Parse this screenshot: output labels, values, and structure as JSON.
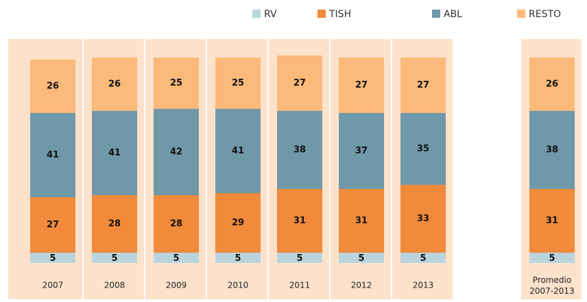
{
  "chart_data": {
    "type": "stacked-bar",
    "categories": [
      "2007",
      "2008",
      "2009",
      "2010",
      "2011",
      "2012",
      "2013",
      "Promedio 2007-2013"
    ],
    "series": [
      {
        "name": "RV",
        "color": "#b9d4dd",
        "values": [
          5,
          5,
          5,
          5,
          5,
          5,
          5,
          5
        ]
      },
      {
        "name": "TISH",
        "color": "#f18a3b",
        "values": [
          27,
          28,
          28,
          29,
          31,
          31,
          33,
          31
        ]
      },
      {
        "name": "ABL",
        "color": "#6f98a9",
        "values": [
          41,
          41,
          42,
          41,
          38,
          37,
          35,
          38
        ]
      },
      {
        "name": "RESTO",
        "color": "#fbb97a",
        "values": [
          26,
          26,
          25,
          25,
          27,
          27,
          27,
          26
        ]
      }
    ]
  }
}
